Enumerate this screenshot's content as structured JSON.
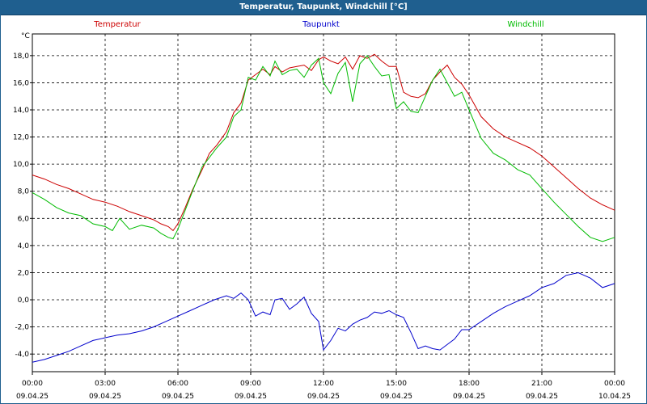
{
  "window": {
    "title": "Temperatur, Taupunkt, Windchill [°C]"
  },
  "colors": {
    "temperatur": "#cc0000",
    "taupunkt": "#0000cc",
    "windchill": "#00bb00",
    "grid": "#000000",
    "titlebar": "#1f5f8f"
  },
  "chart_data": {
    "type": "line",
    "title": "Temperatur, Taupunkt, Windchill [°C]",
    "ylabel": "°C",
    "xlabel": "",
    "ylim": [
      -5.3,
      19.6
    ],
    "xlim": [
      0,
      24
    ],
    "grid": true,
    "legend_position": "top",
    "y_ticks": [
      "18,0",
      "16,0",
      "14,0",
      "12,0",
      "10,0",
      "8,0",
      "6,0",
      "4,0",
      "2,0",
      "0,0",
      "-2,0",
      "-4,0"
    ],
    "y_tick_values": [
      18,
      16,
      14,
      12,
      10,
      8,
      6,
      4,
      2,
      0,
      -2,
      -4
    ],
    "x_ticks": [
      {
        "time": "00:00",
        "date": "09.04.25",
        "hour": 0
      },
      {
        "time": "03:00",
        "date": "09.04.25",
        "hour": 3
      },
      {
        "time": "06:00",
        "date": "09.04.25",
        "hour": 6
      },
      {
        "time": "09:00",
        "date": "09.04.25",
        "hour": 9
      },
      {
        "time": "12:00",
        "date": "09.04.25",
        "hour": 12
      },
      {
        "time": "15:00",
        "date": "09.04.25",
        "hour": 15
      },
      {
        "time": "18:00",
        "date": "09.04.25",
        "hour": 18
      },
      {
        "time": "21:00",
        "date": "09.04.25",
        "hour": 21
      },
      {
        "time": "00:00",
        "date": "10.04.25",
        "hour": 24
      }
    ],
    "series": [
      {
        "name": "Temperatur",
        "color": "#cc0000",
        "x": [
          0,
          0.5,
          1,
          1.5,
          2,
          2.5,
          3,
          3.5,
          4,
          4.5,
          5,
          5.3,
          5.6,
          5.8,
          6,
          6.3,
          6.6,
          7,
          7.3,
          7.6,
          8,
          8.3,
          8.6,
          8.9,
          9.2,
          9.5,
          9.8,
          10,
          10.3,
          10.6,
          10.9,
          11.2,
          11.5,
          11.8,
          12,
          12.3,
          12.6,
          12.9,
          13.2,
          13.5,
          13.8,
          14.1,
          14.4,
          14.7,
          15,
          15.3,
          15.6,
          15.9,
          16.2,
          16.5,
          16.8,
          17.1,
          17.4,
          17.7,
          18,
          18.5,
          19,
          19.5,
          20,
          20.5,
          21,
          21.5,
          22,
          22.5,
          23,
          23.5,
          24
        ],
        "values": [
          9.2,
          8.9,
          8.5,
          8.2,
          7.8,
          7.4,
          7.2,
          6.9,
          6.5,
          6.2,
          5.9,
          5.6,
          5.4,
          5.1,
          5.6,
          6.8,
          8.1,
          9.6,
          10.8,
          11.4,
          12.4,
          13.8,
          14.5,
          16.2,
          16.6,
          17.0,
          16.6,
          17.2,
          16.8,
          17.1,
          17.2,
          17.3,
          16.9,
          17.7,
          17.9,
          17.6,
          17.4,
          17.9,
          17.0,
          18.0,
          17.8,
          18.1,
          17.6,
          17.2,
          17.2,
          15.3,
          15.0,
          14.9,
          15.2,
          16.2,
          16.8,
          17.3,
          16.4,
          15.9,
          15.1,
          13.5,
          12.6,
          12.0,
          11.6,
          11.2,
          10.6,
          9.8,
          9.0,
          8.2,
          7.5,
          7.0,
          6.6
        ]
      },
      {
        "name": "Taupunkt",
        "color": "#0000cc",
        "x": [
          0,
          0.5,
          1,
          1.5,
          2,
          2.5,
          3,
          3.5,
          4,
          4.5,
          5,
          5.5,
          6,
          6.5,
          7,
          7.5,
          8,
          8.3,
          8.6,
          8.9,
          9.2,
          9.5,
          9.8,
          10,
          10.3,
          10.6,
          10.9,
          11.2,
          11.5,
          11.8,
          12,
          12.3,
          12.6,
          12.9,
          13.2,
          13.5,
          13.8,
          14.1,
          14.4,
          14.7,
          15,
          15.3,
          15.6,
          15.9,
          16.2,
          16.5,
          16.8,
          17.1,
          17.4,
          17.7,
          18,
          18.5,
          19,
          19.5,
          20,
          20.5,
          21,
          21.5,
          22,
          22.5,
          23,
          23.5,
          24
        ],
        "values": [
          -4.6,
          -4.4,
          -4.1,
          -3.8,
          -3.4,
          -3.0,
          -2.8,
          -2.6,
          -2.5,
          -2.3,
          -2.0,
          -1.6,
          -1.2,
          -0.8,
          -0.4,
          0.0,
          0.3,
          0.1,
          0.5,
          0.0,
          -1.2,
          -0.9,
          -1.1,
          0.0,
          0.1,
          -0.7,
          -0.3,
          0.2,
          -1.0,
          -1.6,
          -3.7,
          -3.0,
          -2.1,
          -2.3,
          -1.8,
          -1.5,
          -1.3,
          -0.9,
          -1.0,
          -0.8,
          -1.1,
          -1.3,
          -2.4,
          -3.6,
          -3.4,
          -3.6,
          -3.7,
          -3.3,
          -2.9,
          -2.2,
          -2.2,
          -1.6,
          -1.0,
          -0.5,
          -0.1,
          0.3,
          0.9,
          1.2,
          1.8,
          2.0,
          1.6,
          0.9,
          1.2
        ]
      },
      {
        "name": "Windchill",
        "color": "#00bb00",
        "x": [
          0,
          0.5,
          1,
          1.5,
          2,
          2.5,
          3,
          3.3,
          3.6,
          4,
          4.5,
          5,
          5.3,
          5.6,
          5.8,
          6,
          6.3,
          6.6,
          7,
          7.3,
          7.6,
          8,
          8.3,
          8.6,
          8.9,
          9.2,
          9.5,
          9.8,
          10,
          10.3,
          10.6,
          10.9,
          11.2,
          11.5,
          11.8,
          12,
          12.3,
          12.6,
          12.9,
          13.2,
          13.5,
          13.8,
          14.1,
          14.4,
          14.7,
          15,
          15.3,
          15.6,
          15.9,
          16.2,
          16.5,
          16.8,
          17.1,
          17.4,
          17.7,
          18,
          18.5,
          19,
          19.5,
          20,
          20.5,
          21,
          21.5,
          22,
          22.5,
          23,
          23.5,
          24
        ],
        "values": [
          7.9,
          7.4,
          6.8,
          6.4,
          6.2,
          5.6,
          5.4,
          5.1,
          6.0,
          5.2,
          5.5,
          5.3,
          4.9,
          4.6,
          4.5,
          5.2,
          6.6,
          8.0,
          9.8,
          10.5,
          11.2,
          12.0,
          13.5,
          14.0,
          16.4,
          16.2,
          17.2,
          16.5,
          17.6,
          16.6,
          16.9,
          17.0,
          16.4,
          17.3,
          17.8,
          16.0,
          15.2,
          16.7,
          17.5,
          14.6,
          17.4,
          18.0,
          17.2,
          16.5,
          16.6,
          14.1,
          14.6,
          13.9,
          13.8,
          15.0,
          16.2,
          17.0,
          16.0,
          15.0,
          15.3,
          14.0,
          11.9,
          10.8,
          10.3,
          9.6,
          9.2,
          8.2,
          7.2,
          6.3,
          5.4,
          4.6,
          4.3,
          4.6
        ]
      }
    ]
  }
}
